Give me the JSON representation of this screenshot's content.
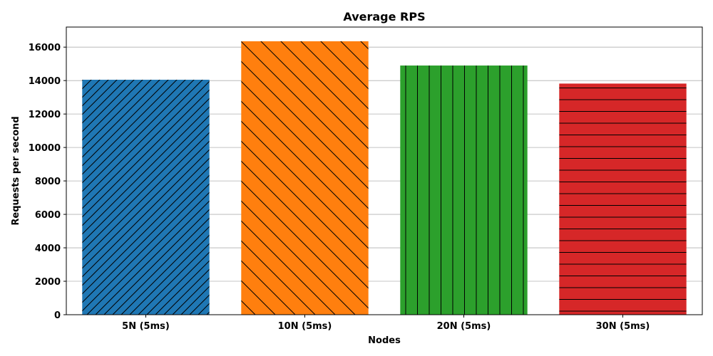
{
  "chart_data": {
    "type": "bar",
    "title": "Average RPS",
    "xlabel": "Nodes",
    "ylabel": "Requests per second",
    "categories": [
      "5N (5ms)",
      "10N (5ms)",
      "20N (5ms)",
      "30N (5ms)"
    ],
    "values": [
      14050,
      16350,
      14900,
      13820
    ],
    "colors": [
      "#1f77b4",
      "#ff7f0e",
      "#2ca02c",
      "#d62728"
    ],
    "hatches": [
      "forward-diagonal",
      "back-diagonal",
      "vertical",
      "horizontal"
    ],
    "ylim": [
      0,
      17200
    ],
    "yticks": [
      0,
      2000,
      4000,
      6000,
      8000,
      10000,
      12000,
      14000,
      16000
    ],
    "grid": "y-major"
  }
}
